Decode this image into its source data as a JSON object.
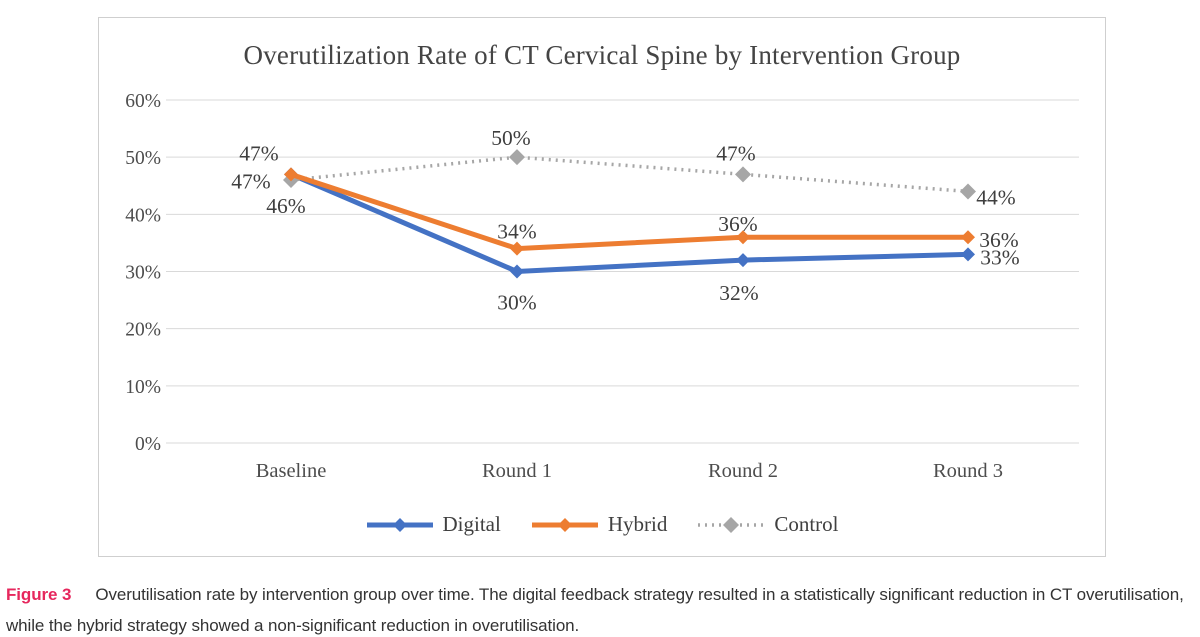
{
  "figure": {
    "caption_label": "Figure 3",
    "caption_text": "Overutilisation rate by intervention group over time. The digital feedback strategy resulted in a statistically significant reduction in CT overutilisation, while the hybrid strategy showed a non-significant reduction in overutilisation.",
    "caption_label_color": "#e6275d"
  },
  "chart_data": {
    "type": "line",
    "title": "Overutilization Rate of CT Cervical Spine by Intervention Group",
    "categories": [
      "Baseline",
      "Round 1",
      "Round 2",
      "Round 3"
    ],
    "series": [
      {
        "name": "Digital",
        "values": [
          47,
          30,
          32,
          33
        ],
        "data_labels": [
          "47%",
          "30%",
          "32%",
          "33%"
        ],
        "color": "#4472C4",
        "style": "solid"
      },
      {
        "name": "Hybrid",
        "values": [
          47,
          34,
          36,
          36
        ],
        "data_labels": [
          "47%",
          "34%",
          "36%",
          "36%"
        ],
        "color": "#ED7D31",
        "style": "solid"
      },
      {
        "name": "Control",
        "values": [
          46,
          50,
          47,
          44
        ],
        "data_labels": [
          "46%",
          "50%",
          "47%",
          "44%"
        ],
        "color": "#A6A6A6",
        "style": "dotted"
      }
    ],
    "ylim": [
      0,
      60
    ],
    "ytick_step": 10,
    "ytick_labels": [
      "0%",
      "10%",
      "20%",
      "30%",
      "40%",
      "50%",
      "60%"
    ],
    "grid": true,
    "legend_position": "bottom",
    "layout": {
      "draw_order": [
        "Digital",
        "Control",
        "Hybrid"
      ],
      "label_offsets": {
        "Digital": [
          [
            -40,
            7
          ],
          [
            0,
            31
          ],
          [
            -4,
            33
          ],
          [
            32,
            3
          ]
        ],
        "Hybrid": [
          [
            -32,
            -21
          ],
          [
            0,
            -17
          ],
          [
            -5,
            -13
          ],
          [
            31,
            3
          ]
        ],
        "Control": [
          [
            -5,
            26
          ],
          [
            -6,
            -19
          ],
          [
            -7,
            -21
          ],
          [
            28,
            6
          ]
        ]
      }
    }
  }
}
